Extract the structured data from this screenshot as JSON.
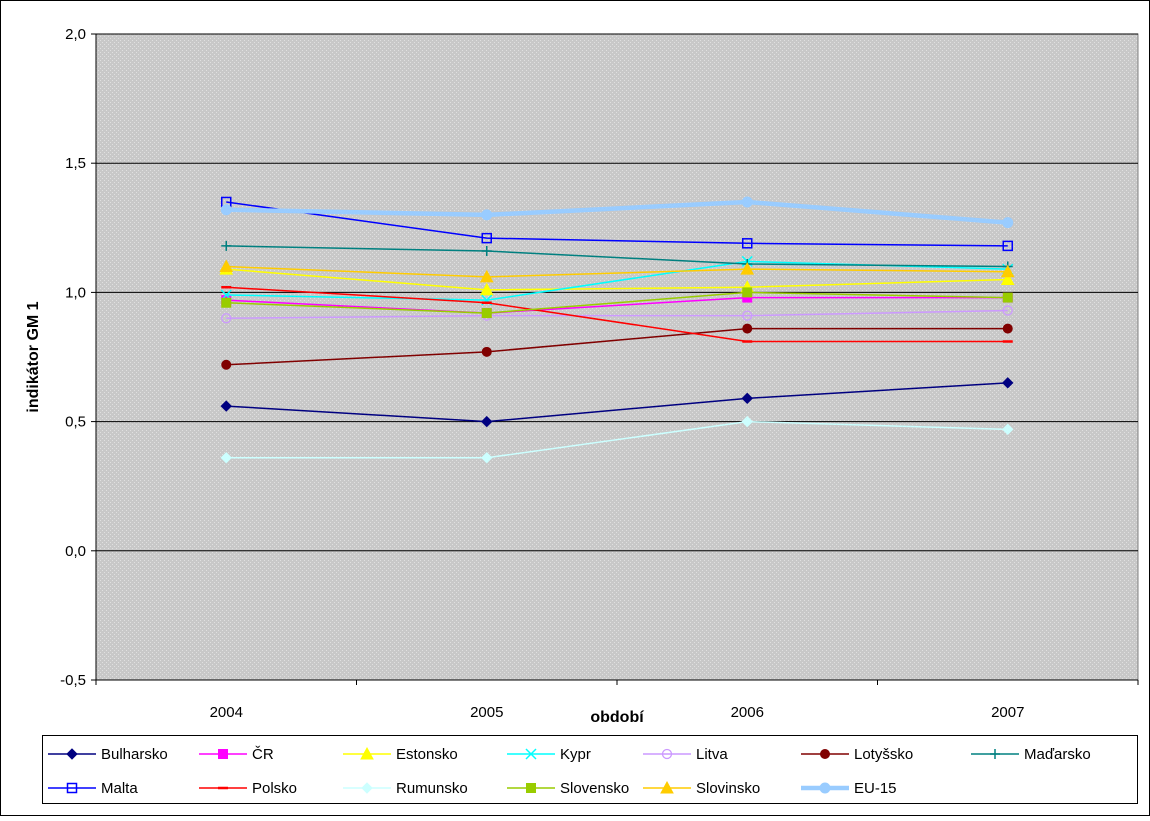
{
  "chart_data": {
    "type": "line",
    "title": "",
    "xlabel": "období",
    "ylabel": "indikátor GM 1",
    "categories": [
      "2004",
      "2005",
      "2006",
      "2007"
    ],
    "ylim": [
      -0.5,
      2.0
    ],
    "yticks": [
      -0.5,
      0.0,
      0.5,
      1.0,
      1.5,
      2.0
    ],
    "ytick_labels": [
      "-0,5",
      "0,0",
      "0,5",
      "1,0",
      "1,5",
      "2,0"
    ],
    "grid": "horizontal",
    "plot_background": "#c0c0c0 pattern",
    "legend_position": "bottom",
    "series": [
      {
        "name": "Bulharsko",
        "color": "#000080",
        "marker": "diamond",
        "values": [
          0.56,
          0.5,
          0.59,
          0.65
        ]
      },
      {
        "name": "ČR",
        "color": "#ff00ff",
        "marker": "square",
        "values": [
          0.97,
          0.92,
          0.98,
          0.98
        ]
      },
      {
        "name": "Estonsko",
        "color": "#ffff00",
        "marker": "triangle",
        "values": [
          1.09,
          1.01,
          1.02,
          1.05
        ]
      },
      {
        "name": "Kypr",
        "color": "#00ffff",
        "marker": "x",
        "values": [
          0.99,
          0.97,
          1.12,
          1.09
        ]
      },
      {
        "name": "Litva",
        "color": "#cc99ff",
        "marker": "circle-open",
        "values": [
          0.9,
          0.91,
          0.91,
          0.93
        ]
      },
      {
        "name": "Lotyšsko",
        "color": "#800000",
        "marker": "circle",
        "values": [
          0.72,
          0.77,
          0.86,
          0.86
        ]
      },
      {
        "name": "Maďarsko",
        "color": "#008080",
        "marker": "plus",
        "values": [
          1.18,
          1.16,
          1.11,
          1.1
        ]
      },
      {
        "name": "Malta",
        "color": "#0000ff",
        "marker": "square-open",
        "values": [
          1.35,
          1.21,
          1.19,
          1.18
        ]
      },
      {
        "name": "Polsko",
        "color": "#ff0000",
        "marker": "dash",
        "values": [
          1.02,
          0.96,
          0.81,
          0.81
        ]
      },
      {
        "name": "Rumunsko",
        "color": "#ccffff",
        "marker": "diamond",
        "values": [
          0.36,
          0.36,
          0.5,
          0.47
        ]
      },
      {
        "name": "Slovensko",
        "color": "#99cc00",
        "marker": "square",
        "values": [
          0.96,
          0.92,
          1.0,
          0.98
        ]
      },
      {
        "name": "Slovinsko",
        "color": "#ffcc00",
        "marker": "triangle",
        "values": [
          1.1,
          1.06,
          1.09,
          1.08
        ]
      },
      {
        "name": "EU-15",
        "color": "#99ccff",
        "marker": "circle",
        "thick": true,
        "values": [
          1.32,
          1.3,
          1.35,
          1.27
        ]
      }
    ]
  }
}
